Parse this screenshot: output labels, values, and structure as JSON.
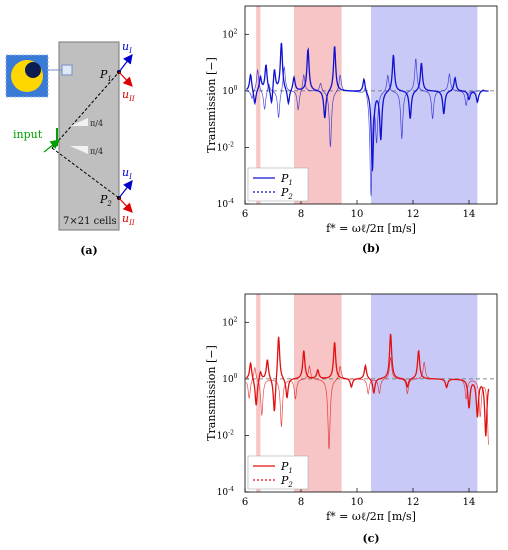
{
  "panel_a": {
    "caption": "(a)",
    "label_input": "input",
    "label_cells": "7×21 cells",
    "label_P1": "P",
    "label_P1_sub": "1",
    "label_P2": "P",
    "label_P2_sub": "2",
    "label_uI": "u",
    "label_uI_sub": "I",
    "label_uII": "u",
    "label_uII_sub": "II",
    "angle1": "π/4",
    "angle2": "π/4",
    "colors": {
      "plate": "#bfbfbf",
      "input": "#00a000",
      "uI": "#0000cc",
      "uII": "#dd0000",
      "inclusion_bg": "#3a7bd5",
      "ring": "#ffd700",
      "core": "#0b1d51"
    }
  },
  "chart_data": [
    {
      "type": "line",
      "caption": "(b)",
      "ylabel": "Transmission [−]",
      "xlabel": "f* = ωℓ/2π [m/s]",
      "xlim": [
        6,
        15
      ],
      "ylim": [
        0.0001,
        1000
      ],
      "ylog": true,
      "xticks": [
        "6",
        "8",
        "10",
        "12",
        "14"
      ],
      "yticks": [
        "10^-4",
        "10^-2",
        "10^0",
        "10^2"
      ],
      "bands": [
        {
          "x0": 6.4,
          "x1": 6.55,
          "color": "#f7c5c5"
        },
        {
          "x0": 7.75,
          "x1": 9.45,
          "color": "#f7c5c5"
        },
        {
          "x0": 10.5,
          "x1": 14.3,
          "color": "#c9c9f7"
        }
      ],
      "reference_line": 1,
      "legend": [
        "P1",
        "P2"
      ],
      "color": "#1010d0",
      "series": [
        {
          "name": "P1",
          "style": "solid",
          "baseline": 1.0,
          "peaks": [
            [
              6.2,
              4
            ],
            [
              6.35,
              0.3
            ],
            [
              6.55,
              3
            ],
            [
              6.75,
              8
            ],
            [
              6.95,
              0.25
            ],
            [
              7.05,
              6
            ],
            [
              7.3,
              50
            ],
            [
              7.55,
              0.3
            ],
            [
              7.75,
              3
            ],
            [
              8.25,
              30
            ],
            [
              8.85,
              0.1
            ],
            [
              9.2,
              40
            ],
            [
              10.25,
              3
            ],
            [
              10.55,
              0.0015
            ],
            [
              10.85,
              0.02
            ],
            [
              11.3,
              20
            ],
            [
              11.9,
              0.1
            ],
            [
              12.3,
              10
            ],
            [
              13.1,
              0.15
            ],
            [
              13.5,
              3
            ],
            [
              14.0,
              0.5
            ],
            [
              14.3,
              0.4
            ],
            [
              14.5,
              1.1
            ]
          ]
        },
        {
          "name": "P2",
          "style": "solid-thin",
          "baseline": 1.0,
          "peaks": [
            [
              6.25,
              0.5
            ],
            [
              6.45,
              6
            ],
            [
              6.7,
              0.2
            ],
            [
              6.85,
              2
            ],
            [
              7.2,
              0.1
            ],
            [
              7.4,
              8
            ],
            [
              7.9,
              0.2
            ],
            [
              8.1,
              4
            ],
            [
              8.7,
              2
            ],
            [
              9.05,
              0.01
            ],
            [
              9.4,
              4
            ],
            [
              10.3,
              2
            ],
            [
              10.5,
              0.0002
            ],
            [
              10.7,
              0.02
            ],
            [
              11.1,
              4
            ],
            [
              11.6,
              0.02
            ],
            [
              12.1,
              15
            ],
            [
              12.7,
              0.1
            ],
            [
              13.3,
              4
            ],
            [
              13.9,
              0.3
            ],
            [
              14.4,
              1.0
            ]
          ]
        }
      ]
    },
    {
      "type": "line",
      "caption": "(c)",
      "ylabel": "Transmission [−]",
      "xlabel": "f* = ωℓ/2π [m/s]",
      "xlim": [
        6,
        15
      ],
      "ylim": [
        0.0001,
        1000
      ],
      "ylog": true,
      "xticks": [
        "6",
        "8",
        "10",
        "12",
        "14"
      ],
      "yticks": [
        "10^-4",
        "10^-2",
        "10^0",
        "10^2"
      ],
      "bands": [
        {
          "x0": 6.4,
          "x1": 6.55,
          "color": "#f7c5c5"
        },
        {
          "x0": 7.75,
          "x1": 9.45,
          "color": "#f7c5c5"
        },
        {
          "x0": 10.5,
          "x1": 14.3,
          "color": "#c9c9f7"
        }
      ],
      "reference_line": 1,
      "legend": [
        "P1",
        "P2"
      ],
      "color": "#e01010",
      "series": [
        {
          "name": "P1",
          "style": "solid",
          "baseline": 1.0,
          "peaks": [
            [
              6.2,
              4
            ],
            [
              6.4,
              0.1
            ],
            [
              6.55,
              2
            ],
            [
              6.8,
              5
            ],
            [
              7.05,
              0.05
            ],
            [
              7.2,
              40
            ],
            [
              7.5,
              0.2
            ],
            [
              8.1,
              10
            ],
            [
              8.6,
              2
            ],
            [
              9.2,
              20
            ],
            [
              9.8,
              0.5
            ],
            [
              10.3,
              3
            ],
            [
              10.6,
              0.3
            ],
            [
              11.2,
              40
            ],
            [
              11.8,
              0.5
            ],
            [
              12.2,
              10
            ],
            [
              13.2,
              0.5
            ],
            [
              14.0,
              0.1
            ],
            [
              14.3,
              0.05
            ],
            [
              14.6,
              0.01
            ]
          ]
        },
        {
          "name": "P2",
          "style": "solid-thin",
          "baseline": 1.0,
          "peaks": [
            [
              6.15,
              0.2
            ],
            [
              6.35,
              3
            ],
            [
              6.6,
              0.05
            ],
            [
              7.0,
              1
            ],
            [
              7.3,
              0.02
            ],
            [
              7.8,
              0.2
            ],
            [
              8.3,
              3
            ],
            [
              9.0,
              0.003
            ],
            [
              9.4,
              3
            ],
            [
              10.4,
              0.3
            ],
            [
              10.8,
              0.3
            ],
            [
              11.2,
              6
            ],
            [
              11.8,
              0.3
            ],
            [
              12.4,
              4
            ],
            [
              13.2,
              0.5
            ],
            [
              13.9,
              0.2
            ],
            [
              14.4,
              0.05
            ],
            [
              14.7,
              0.005
            ]
          ]
        }
      ]
    }
  ]
}
